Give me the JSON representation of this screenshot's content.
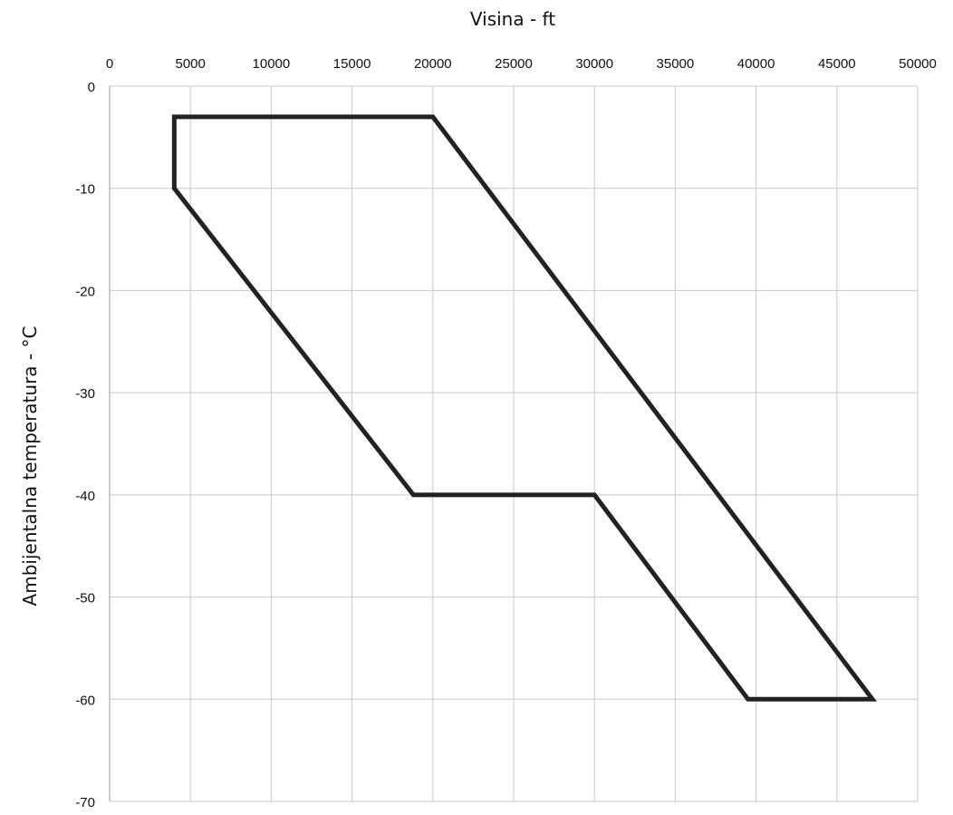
{
  "chart_data": {
    "type": "line",
    "xlabel": "Visina - ft",
    "ylabel": "Ambijentalna temperatura - °C",
    "x_axis_position": "top",
    "xlim": [
      0,
      50000
    ],
    "ylim": [
      -70,
      0
    ],
    "x_ticks": [
      0,
      5000,
      10000,
      15000,
      20000,
      25000,
      30000,
      35000,
      40000,
      45000,
      50000
    ],
    "y_ticks": [
      0,
      -10,
      -20,
      -30,
      -40,
      -50,
      -60,
      -70
    ],
    "x_tick_labels": [
      "0",
      "5000",
      "10000",
      "15000",
      "20000",
      "25000",
      "30000",
      "35000",
      "40000",
      "45000",
      "50000"
    ],
    "y_tick_labels": [
      "0",
      "-10",
      "-20",
      "-30",
      "-40",
      "-50",
      "-60",
      "-70"
    ],
    "grid": true,
    "series": [
      {
        "color": "#222222",
        "closed": true,
        "points": [
          {
            "x": 4000,
            "y": -3
          },
          {
            "x": 20000,
            "y": -3
          },
          {
            "x": 47200,
            "y": -60
          },
          {
            "x": 39500,
            "y": -60
          },
          {
            "x": 30000,
            "y": -40
          },
          {
            "x": 18800,
            "y": -40
          },
          {
            "x": 4000,
            "y": -10
          }
        ]
      }
    ]
  }
}
